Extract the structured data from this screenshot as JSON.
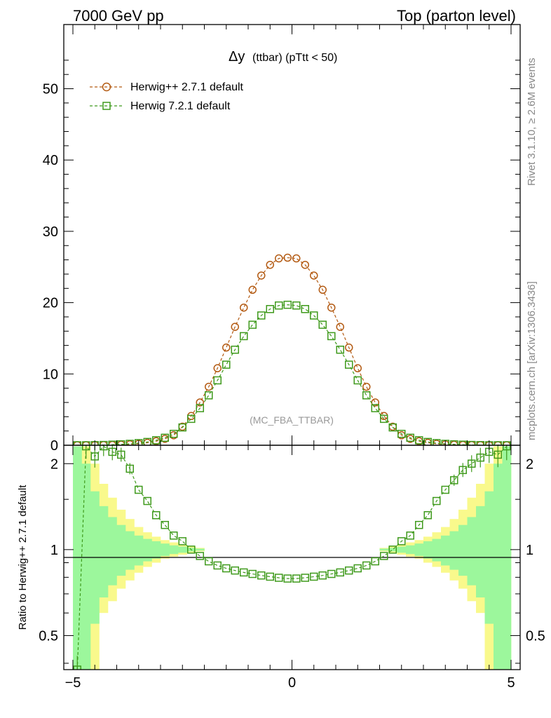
{
  "header": {
    "left": "7000 GeV pp",
    "right": "Top (parton level)"
  },
  "side_labels": {
    "rivet": "Rivet 3.1.10, ≥ 2.6M events",
    "mcplots": "mcplots.cern.ch [arXiv:1306.3436]"
  },
  "colors": {
    "herwigpp": "#b35a12",
    "herwig7": "#3f9a1c",
    "band_inner": "#9cf79c",
    "band_outer": "#f9f98c"
  },
  "chart_data": [
    {
      "type": "line",
      "title": "Δy (ttbar) (pTtt < 50)",
      "title_main": "Δy",
      "title_sub": "(ttbar) (pTtt < 50)",
      "watermark": "(MC_FBA_TTBAR)",
      "xlim": [
        -5,
        5
      ],
      "ylim": [
        0,
        59
      ],
      "ylabel": "",
      "y_ticks": [
        "0",
        "10",
        "20",
        "30",
        "40",
        "50"
      ],
      "legend_position": "top-left",
      "x": [
        -4.9,
        -4.7,
        -4.5,
        -4.3,
        -4.1,
        -3.9,
        -3.7,
        -3.5,
        -3.3,
        -3.1,
        -2.9,
        -2.7,
        -2.5,
        -2.3,
        -2.1,
        -1.9,
        -1.7,
        -1.5,
        -1.3,
        -1.1,
        -0.9,
        -0.7,
        -0.5,
        -0.3,
        -0.1,
        0.1,
        0.3,
        0.5,
        0.7,
        0.9,
        1.1,
        1.3,
        1.5,
        1.7,
        1.9,
        2.1,
        2.3,
        2.5,
        2.7,
        2.9,
        3.1,
        3.3,
        3.5,
        3.7,
        3.9,
        4.1,
        4.3,
        4.5,
        4.7,
        4.9
      ],
      "series": [
        {
          "name": "Herwig++ 2.7.1 default",
          "marker": "circle",
          "values": [
            0.0,
            0.0,
            0.01,
            0.02,
            0.04,
            0.07,
            0.12,
            0.2,
            0.34,
            0.56,
            0.9,
            1.4,
            2.6,
            4.1,
            6.0,
            8.2,
            10.8,
            13.7,
            16.6,
            19.3,
            21.8,
            23.8,
            25.3,
            26.2,
            26.3,
            26.2,
            25.3,
            23.8,
            21.8,
            19.3,
            16.6,
            13.7,
            10.8,
            8.2,
            6.0,
            4.1,
            2.6,
            1.4,
            0.9,
            0.56,
            0.34,
            0.2,
            0.12,
            0.07,
            0.04,
            0.02,
            0.01,
            0.0,
            0.0,
            0.0
          ]
        },
        {
          "name": "Herwig 7.2.1 default",
          "marker": "square",
          "values": [
            0.0,
            0.0,
            0.02,
            0.04,
            0.08,
            0.13,
            0.2,
            0.3,
            0.46,
            0.7,
            1.05,
            1.6,
            2.5,
            3.7,
            5.2,
            7.0,
            9.1,
            11.3,
            13.4,
            15.3,
            16.9,
            18.2,
            19.1,
            19.6,
            19.7,
            19.6,
            19.1,
            18.2,
            16.9,
            15.3,
            13.4,
            11.3,
            9.1,
            7.0,
            5.2,
            3.7,
            2.5,
            1.6,
            1.05,
            0.7,
            0.46,
            0.3,
            0.2,
            0.13,
            0.08,
            0.04,
            0.02,
            0.0,
            0.0,
            0.0
          ]
        }
      ]
    },
    {
      "type": "line",
      "ylabel": "Ratio to Herwig++ 2.7.1 default",
      "xlim": [
        -5,
        5
      ],
      "ylim": [
        0.38,
        2.32
      ],
      "y_scale": "log",
      "y_ticks": [
        "0.5",
        "1",
        "2"
      ],
      "x_ticks": [
        "−5",
        "0",
        "5"
      ],
      "band_edges": [
        -5.0,
        -4.8,
        -4.6,
        -4.4,
        -4.2,
        -4.0,
        -3.8,
        -3.6,
        -3.4,
        -3.2,
        -3.0,
        -2.8,
        -2.6,
        -2.4,
        -2.2,
        -2.0
      ],
      "band_inner_up": [
        2.3,
        2.0,
        1.6,
        1.42,
        1.3,
        1.22,
        1.16,
        1.12,
        1.09,
        1.07,
        1.05,
        1.035,
        1.025,
        1.015,
        1.008
      ],
      "band_outer_up": [
        2.3,
        2.3,
        2.0,
        1.7,
        1.52,
        1.38,
        1.28,
        1.2,
        1.15,
        1.11,
        1.08,
        1.06,
        1.04,
        1.025,
        1.014
      ],
      "band_inner_dn": [
        0.38,
        0.38,
        0.55,
        0.68,
        0.75,
        0.81,
        0.85,
        0.88,
        0.91,
        0.93,
        0.95,
        0.965,
        0.975,
        0.985,
        0.992
      ],
      "band_outer_dn": [
        0.38,
        0.38,
        0.38,
        0.6,
        0.66,
        0.73,
        0.78,
        0.83,
        0.87,
        0.9,
        0.93,
        0.945,
        0.96,
        0.975,
        0.986
      ],
      "series": [
        {
          "name": "Herwig 7.2.1 default",
          "values": [
            0.38,
            2.3,
            2.12,
            2.3,
            2.2,
            2.15,
            1.92,
            1.62,
            1.48,
            1.32,
            1.22,
            1.12,
            1.07,
            1.0,
            0.95,
            0.91,
            0.88,
            0.86,
            0.845,
            0.832,
            0.822,
            0.812,
            0.804,
            0.797,
            0.792,
            0.792,
            0.797,
            0.804,
            0.812,
            0.822,
            0.832,
            0.845,
            0.86,
            0.88,
            0.91,
            0.95,
            1.0,
            1.07,
            1.12,
            1.22,
            1.32,
            1.48,
            1.62,
            1.75,
            1.9,
            2.0,
            2.1,
            2.2,
            2.15,
            2.3
          ]
        }
      ]
    }
  ]
}
